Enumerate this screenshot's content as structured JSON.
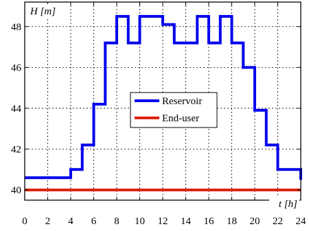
{
  "chart_data": {
    "type": "line",
    "step": true,
    "xlabel": "t [h]",
    "ylabel": "H [m]",
    "xlim": [
      0,
      24
    ],
    "ylim": [
      39.5,
      49.2
    ],
    "xticks": [
      0,
      2,
      4,
      6,
      8,
      10,
      12,
      14,
      16,
      18,
      20,
      22,
      24
    ],
    "yticks": [
      40,
      42,
      44,
      46,
      48
    ],
    "x_tick_labels": [
      "0",
      "2",
      "4",
      "6",
      "8",
      "10",
      "12",
      "14",
      "16",
      "18",
      "20",
      "22",
      "24"
    ],
    "y_tick_labels": [
      "40",
      "42",
      "44",
      "46",
      "48"
    ],
    "grid": true,
    "legend_position": "center",
    "series": [
      {
        "name": "Reservoir",
        "color": "#0000ee",
        "x": [
          0,
          4,
          5,
          6,
          7,
          8,
          9,
          10,
          11,
          12,
          13,
          14,
          15,
          16,
          17,
          18,
          19,
          20,
          21,
          22,
          23,
          24
        ],
        "y": [
          40.6,
          41.0,
          42.2,
          44.2,
          47.2,
          48.5,
          47.2,
          48.5,
          48.5,
          48.1,
          47.2,
          47.2,
          48.5,
          47.2,
          48.5,
          47.2,
          46.0,
          43.9,
          42.2,
          41.0,
          41.0,
          40.5
        ]
      },
      {
        "name": "End-user",
        "color": "#dd2200",
        "x": [
          0,
          24
        ],
        "y": [
          40.0,
          40.0
        ]
      }
    ]
  }
}
